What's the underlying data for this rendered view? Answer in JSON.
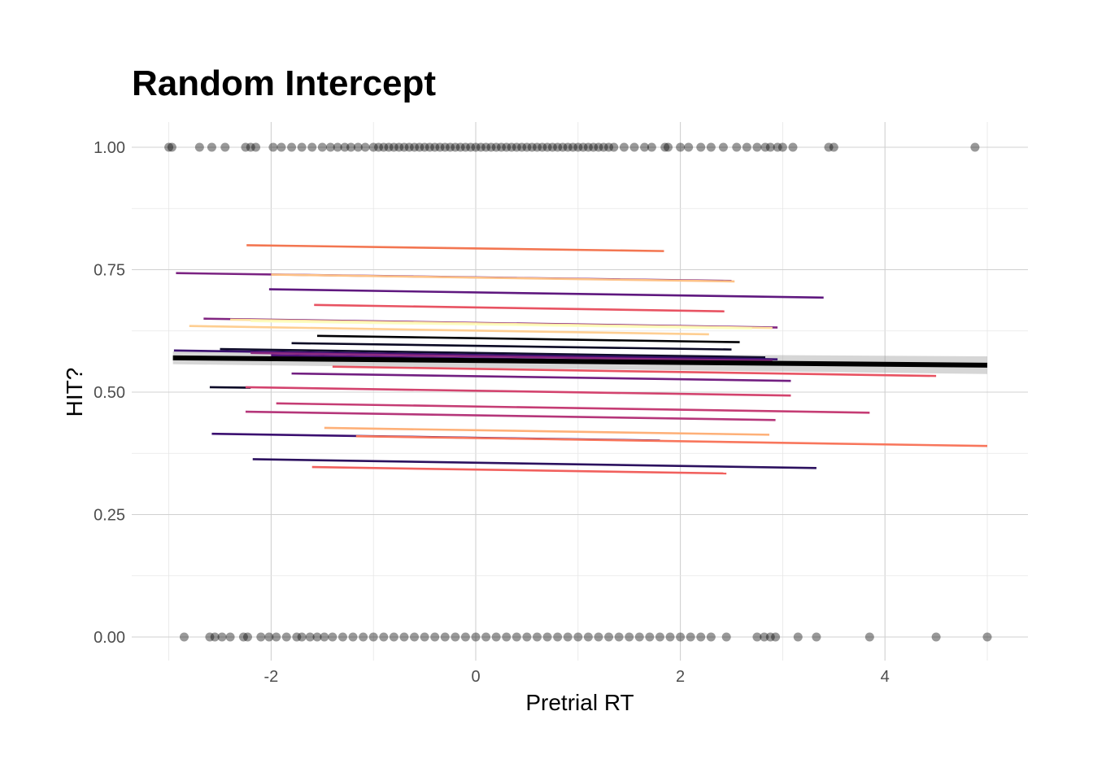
{
  "chart_data": {
    "type": "line",
    "title": "Random Intercept",
    "xlabel": "Pretrial RT",
    "ylabel": "HIT?",
    "xlim": [
      -3.0,
      5.0
    ],
    "ylim": [
      0.0,
      1.0
    ],
    "x_ticks": [
      -2,
      0,
      2,
      4
    ],
    "x_tick_labels": [
      "-2",
      "0",
      "2",
      "4"
    ],
    "y_ticks": [
      0.0,
      0.25,
      0.5,
      0.75,
      1.0
    ],
    "y_tick_labels": [
      "0.00",
      "0.25",
      "0.50",
      "0.75",
      "1.00"
    ],
    "grid": true,
    "legend": "none",
    "points_hit": [
      -3.0,
      -2.97,
      -2.7,
      -2.58,
      -2.45,
      -2.25,
      -2.2,
      -2.15,
      -1.98,
      -1.9,
      -1.8,
      -1.7,
      -1.6,
      -1.5,
      -1.42,
      -1.35,
      -1.28,
      -1.22,
      -1.15,
      -1.08,
      -1.0,
      -0.95,
      -0.9,
      -0.85,
      -0.8,
      -0.75,
      -0.7,
      -0.65,
      -0.6,
      -0.55,
      -0.5,
      -0.45,
      -0.4,
      -0.35,
      -0.3,
      -0.25,
      -0.2,
      -0.15,
      -0.1,
      -0.05,
      0.0,
      0.05,
      0.1,
      0.15,
      0.2,
      0.25,
      0.3,
      0.35,
      0.4,
      0.45,
      0.5,
      0.55,
      0.6,
      0.65,
      0.7,
      0.75,
      0.8,
      0.85,
      0.9,
      0.95,
      1.0,
      1.05,
      1.1,
      1.15,
      1.2,
      1.25,
      1.3,
      1.35,
      1.45,
      1.55,
      1.65,
      1.72,
      1.85,
      1.88,
      2.0,
      2.08,
      2.2,
      2.3,
      2.42,
      2.55,
      2.65,
      2.75,
      2.83,
      2.88,
      2.95,
      3.0,
      3.1,
      3.45,
      3.5,
      4.88
    ],
    "points_miss": [
      -2.85,
      -2.6,
      -2.55,
      -2.48,
      -2.4,
      -2.27,
      -2.23,
      -2.1,
      -2.02,
      -1.95,
      -1.85,
      -1.75,
      -1.7,
      -1.62,
      -1.55,
      -1.48,
      -1.4,
      -1.3,
      -1.2,
      -1.1,
      -1.0,
      -0.9,
      -0.8,
      -0.7,
      -0.6,
      -0.5,
      -0.4,
      -0.3,
      -0.2,
      -0.1,
      0.0,
      0.1,
      0.2,
      0.3,
      0.4,
      0.5,
      0.6,
      0.7,
      0.8,
      0.9,
      1.0,
      1.1,
      1.2,
      1.3,
      1.4,
      1.5,
      1.6,
      1.7,
      1.8,
      1.9,
      2.0,
      2.1,
      2.2,
      2.3,
      2.45,
      2.75,
      2.82,
      2.88,
      2.93,
      3.15,
      3.33,
      3.85,
      4.5,
      5.0
    ],
    "series": [
      {
        "color": "#F37651",
        "x": [
          -2.24,
          1.84
        ],
        "y": [
          0.8,
          0.788
        ]
      },
      {
        "color": "#7B2382",
        "x": [
          -2.93,
          2.5
        ],
        "y": [
          0.743,
          0.727
        ]
      },
      {
        "color": "#FEC287",
        "x": [
          -2.0,
          2.53
        ],
        "y": [
          0.74,
          0.726
        ]
      },
      {
        "color": "#5F187F",
        "x": [
          -2.02,
          3.4
        ],
        "y": [
          0.71,
          0.693
        ]
      },
      {
        "color": "#E85362",
        "x": [
          -1.58,
          2.43
        ],
        "y": [
          0.678,
          0.665
        ]
      },
      {
        "color": "#812581",
        "x": [
          -2.66,
          2.95
        ],
        "y": [
          0.65,
          0.632
        ]
      },
      {
        "color": "#FEE0A0",
        "x": [
          -2.4,
          2.9
        ],
        "y": [
          0.648,
          0.631
        ]
      },
      {
        "color": "#FCFDBF",
        "x": [
          -2.2,
          2.7
        ],
        "y": [
          0.645,
          0.63
        ]
      },
      {
        "color": "#FECE91",
        "x": [
          -2.8,
          2.28
        ],
        "y": [
          0.635,
          0.618
        ]
      },
      {
        "color": "#000004",
        "x": [
          -1.55,
          2.58
        ],
        "y": [
          0.615,
          0.602
        ]
      },
      {
        "color": "#0B0924",
        "x": [
          -1.8,
          2.5
        ],
        "y": [
          0.6,
          0.587
        ]
      },
      {
        "color": "#0F0D2B",
        "x": [
          -2.5,
          2.83
        ],
        "y": [
          0.588,
          0.571
        ]
      },
      {
        "color": "#3B0F70",
        "x": [
          -2.95,
          2.95
        ],
        "y": [
          0.585,
          0.567
        ]
      },
      {
        "color": "#8C2981",
        "x": [
          -2.2,
          2.9
        ],
        "y": [
          0.58,
          0.564
        ]
      },
      {
        "color": "#51127C",
        "x": [
          -2.0,
          4.88
        ],
        "y": [
          0.575,
          0.553
        ]
      },
      {
        "color": "#E85362",
        "x": [
          -1.4,
          4.5
        ],
        "y": [
          0.552,
          0.533
        ]
      },
      {
        "color": "#721F81",
        "x": [
          -1.8,
          3.08
        ],
        "y": [
          0.538,
          0.523
        ]
      },
      {
        "color": "#0C0927",
        "x": [
          -2.6,
          -2.2
        ],
        "y": [
          0.51,
          0.509
        ]
      },
      {
        "color": "#D3436E",
        "x": [
          -2.25,
          3.08
        ],
        "y": [
          0.51,
          0.493
        ]
      },
      {
        "color": "#C53C74",
        "x": [
          -1.95,
          3.85
        ],
        "y": [
          0.477,
          0.458
        ]
      },
      {
        "color": "#B5367A",
        "x": [
          -2.25,
          2.93
        ],
        "y": [
          0.46,
          0.443
        ]
      },
      {
        "color": "#FEB078",
        "x": [
          -1.48,
          2.87
        ],
        "y": [
          0.427,
          0.413
        ]
      },
      {
        "color": "#3B0F70",
        "x": [
          -2.58,
          1.8
        ],
        "y": [
          0.415,
          0.401
        ]
      },
      {
        "color": "#F8765C",
        "x": [
          -1.17,
          5.0
        ],
        "y": [
          0.41,
          0.39
        ]
      },
      {
        "color": "#2C115F",
        "x": [
          -2.18,
          3.33
        ],
        "y": [
          0.363,
          0.345
        ]
      },
      {
        "color": "#F1605D",
        "x": [
          -1.6,
          2.45
        ],
        "y": [
          0.347,
          0.334
        ]
      }
    ],
    "fixed_effect": {
      "color": "#000000",
      "x": [
        -2.96,
        5.0
      ],
      "y": [
        0.57,
        0.555
      ],
      "ci_halfwidth_start": 0.013,
      "ci_halfwidth_end": 0.018
    }
  }
}
